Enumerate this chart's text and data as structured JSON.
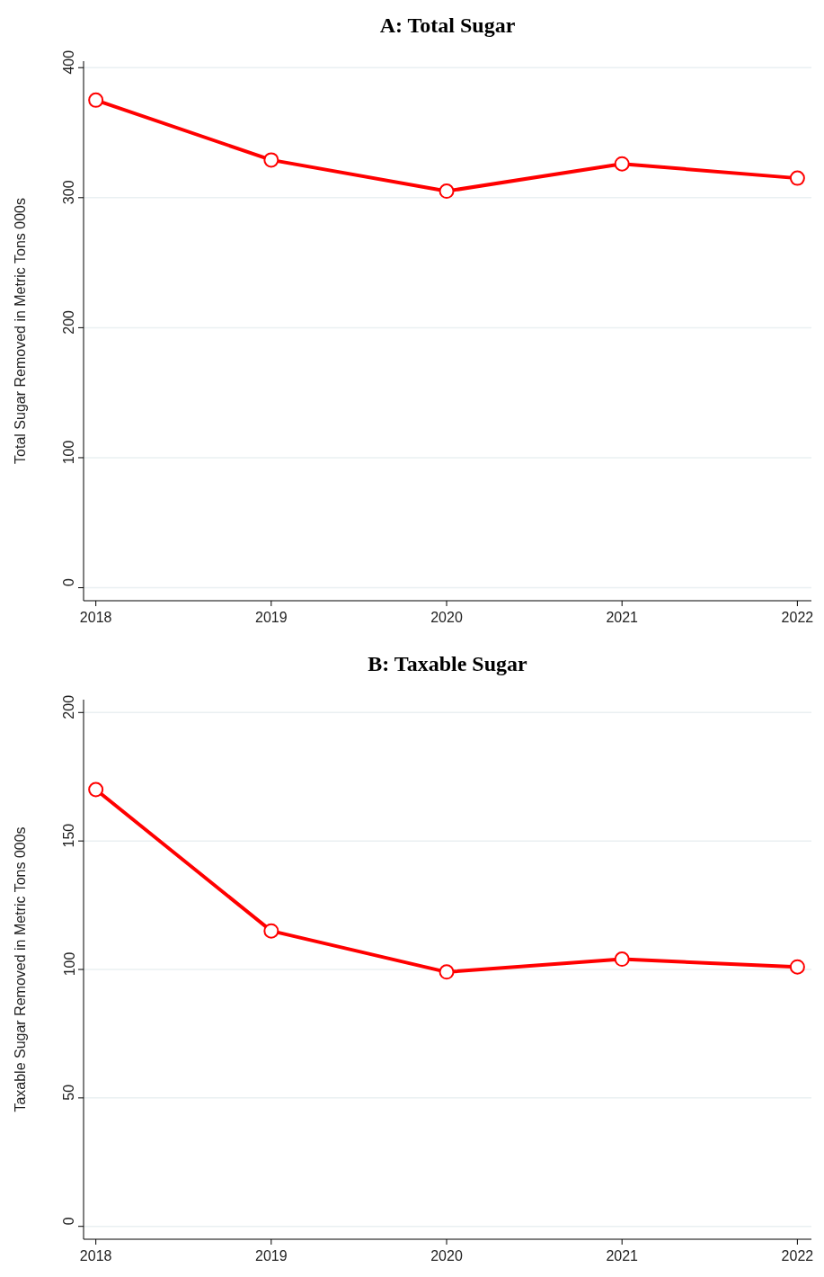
{
  "chart_data": [
    {
      "type": "line",
      "title": "A: Total Sugar",
      "ylabel": "Total Sugar Removed in Metric Tons 000s",
      "x": [
        2018,
        2019,
        2020,
        2021,
        2022
      ],
      "series": [
        {
          "color": "#ff0000",
          "values": [
            375,
            329,
            305,
            326,
            315
          ]
        }
      ],
      "xlim": [
        2017.93,
        2022.08
      ],
      "xticks": [
        2018,
        2019,
        2020,
        2021,
        2022
      ],
      "ylim": [
        -10,
        405
      ],
      "yticks": [
        0,
        100,
        200,
        300,
        400
      ],
      "grid": "y",
      "marker": "circle"
    },
    {
      "type": "line",
      "title": "B: Taxable Sugar",
      "ylabel": "Taxable Sugar Removed in Metric Tons 000s",
      "x": [
        2018,
        2019,
        2020,
        2021,
        2022
      ],
      "series": [
        {
          "color": "#ff0000",
          "values": [
            170,
            115,
            99,
            104,
            101
          ]
        }
      ],
      "xlim": [
        2017.93,
        2022.08
      ],
      "xticks": [
        2018,
        2019,
        2020,
        2021,
        2022
      ],
      "ylim": [
        -5,
        205
      ],
      "yticks": [
        0,
        50,
        100,
        150,
        200
      ],
      "grid": "y",
      "marker": "circle"
    }
  ]
}
